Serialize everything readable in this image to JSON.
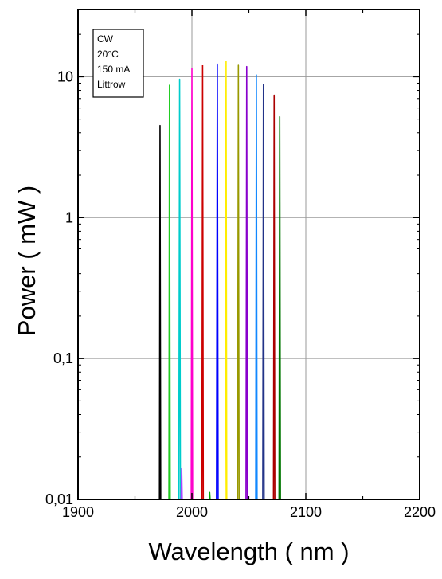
{
  "chart_data": {
    "type": "line",
    "xlabel": "Wavelength ( nm )",
    "ylabel": "Power ( mW )",
    "xlim": [
      1900,
      2200
    ],
    "ylim": [
      0.01,
      30
    ],
    "y_scale": "log",
    "grid": true,
    "x_ticks": [
      {
        "value": 1900,
        "label": "1900"
      },
      {
        "value": 2000,
        "label": "2000"
      },
      {
        "value": 2100,
        "label": "2100"
      },
      {
        "value": 2200,
        "label": "2200"
      }
    ],
    "y_ticks": [
      {
        "value": 0.01,
        "label": "0,01"
      },
      {
        "value": 0.1,
        "label": "0,1"
      },
      {
        "value": 1,
        "label": "1"
      },
      {
        "value": 10,
        "label": "10"
      }
    ],
    "annotation": [
      "CW",
      "20°C",
      "150 mA",
      "Littrow"
    ],
    "series": [
      {
        "color": "#000000",
        "points": [
          [
            1971.5,
            0.01
          ],
          [
            1972.0,
            4.5
          ],
          [
            1972.6,
            0.01
          ]
        ]
      },
      {
        "color": "#22cc22",
        "points": [
          [
            1979.8,
            0.01
          ],
          [
            1980.3,
            8.7
          ],
          [
            1980.9,
            0.01
          ]
        ]
      },
      {
        "color": "#00cccc",
        "points": [
          [
            1988.5,
            0.01
          ],
          [
            1989.2,
            9.6
          ],
          [
            1989.9,
            0.01
          ]
        ]
      },
      {
        "color": "#aa44ff",
        "points": [
          [
            1990.5,
            0.01
          ],
          [
            1991.0,
            0.0165
          ],
          [
            1991.5,
            0.01
          ]
        ]
      },
      {
        "color": "#ff00cc",
        "points": [
          [
            1999.4,
            0.01
          ],
          [
            2000.0,
            11.5
          ],
          [
            2000.6,
            0.01
          ]
        ]
      },
      {
        "color": "#cc0000",
        "points": [
          [
            2008.8,
            0.01
          ],
          [
            2009.4,
            12.1
          ],
          [
            2010.0,
            0.01
          ]
        ]
      },
      {
        "color": "#00aa00",
        "points": [
          [
            2015.2,
            0.01
          ],
          [
            2015.6,
            0.0112
          ],
          [
            2016.0,
            0.01
          ]
        ]
      },
      {
        "color": "#0000ff",
        "points": [
          [
            2021.6,
            0.01
          ],
          [
            2022.3,
            12.3
          ],
          [
            2023.0,
            0.01
          ]
        ]
      },
      {
        "color": "#ffee00",
        "points": [
          [
            2029.3,
            0.01
          ],
          [
            2030.0,
            12.9
          ],
          [
            2030.6,
            0.01
          ]
        ]
      },
      {
        "color": "#999900",
        "points": [
          [
            2040.1,
            0.01
          ],
          [
            2040.8,
            12.2
          ],
          [
            2041.4,
            0.01
          ]
        ]
      },
      {
        "color": "#8800cc",
        "points": [
          [
            2047.5,
            0.01
          ],
          [
            2048.1,
            11.8
          ],
          [
            2048.7,
            0.01
          ]
        ]
      },
      {
        "color": "#1188ff",
        "points": [
          [
            2056.0,
            0.01
          ],
          [
            2056.6,
            10.3
          ],
          [
            2057.2,
            0.01
          ]
        ]
      },
      {
        "color": "#223388",
        "points": [
          [
            2062.2,
            0.01
          ],
          [
            2062.8,
            8.8
          ],
          [
            2063.4,
            0.01
          ]
        ]
      },
      {
        "color": "#aa0000",
        "points": [
          [
            2071.6,
            0.01
          ],
          [
            2072.2,
            7.4
          ],
          [
            2072.8,
            0.01
          ]
        ]
      },
      {
        "color": "#007700",
        "points": [
          [
            2076.5,
            0.01
          ],
          [
            2077.1,
            5.2
          ],
          [
            2077.7,
            0.01
          ]
        ]
      }
    ]
  }
}
